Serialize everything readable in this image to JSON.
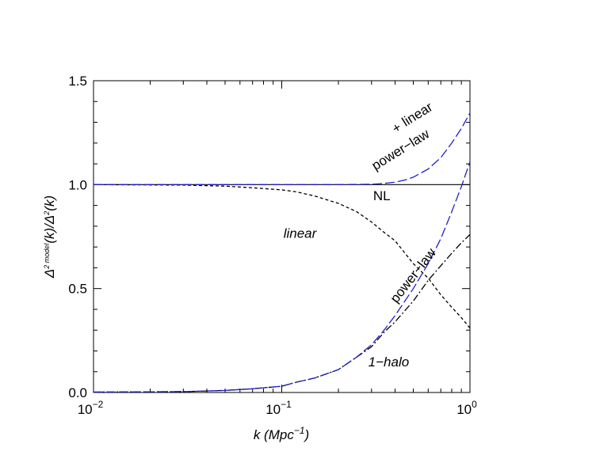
{
  "chart_data": {
    "type": "line",
    "xscale": "log",
    "xlim": [
      0.01,
      1
    ],
    "ylim": [
      0,
      1.5
    ],
    "grid": false,
    "xlabel_main": "k (Mpc",
    "xlabel_exp": "−1",
    "xlabel_close": ")",
    "ylabel_parts": {
      "a": "Δ",
      "b": "2 model",
      "c": "(k)/Δ",
      "d": "2",
      "e": "(k)"
    },
    "xticks": [
      {
        "value": 0.01,
        "base": "10",
        "exp": "−2"
      },
      {
        "value": 0.1,
        "base": "10",
        "exp": "−1"
      },
      {
        "value": 1,
        "base": "10",
        "exp": "0"
      }
    ],
    "yticks": [
      {
        "value": 0.0,
        "label": "0.0"
      },
      {
        "value": 0.5,
        "label": "0.5"
      },
      {
        "value": 1.0,
        "label": "1.0"
      },
      {
        "value": 1.5,
        "label": "1.5"
      }
    ],
    "series": [
      {
        "name": "NL",
        "color": "#000000",
        "style": "solid",
        "x": [
          0.01,
          1
        ],
        "y": [
          1.0,
          1.0
        ]
      },
      {
        "name": "linear",
        "color": "#000000",
        "style": "dashed",
        "x": [
          0.01,
          0.03,
          0.05,
          0.07,
          0.1,
          0.12,
          0.15,
          0.2,
          0.25,
          0.3,
          0.35,
          0.4,
          0.5,
          0.6,
          0.7,
          0.8,
          0.9,
          1.0
        ],
        "y": [
          1.0,
          0.998,
          0.993,
          0.985,
          0.975,
          0.965,
          0.945,
          0.91,
          0.87,
          0.82,
          0.77,
          0.73,
          0.62,
          0.55,
          0.47,
          0.41,
          0.36,
          0.31
        ]
      },
      {
        "name": "1-halo",
        "color": "#000000",
        "style": "dashdot",
        "x": [
          0.01,
          0.03,
          0.05,
          0.07,
          0.1,
          0.12,
          0.15,
          0.2,
          0.25,
          0.3,
          0.35,
          0.4,
          0.5,
          0.6,
          0.7,
          0.8,
          0.9,
          1.0
        ],
        "y": [
          0.002,
          0.004,
          0.01,
          0.018,
          0.03,
          0.05,
          0.07,
          0.11,
          0.17,
          0.22,
          0.29,
          0.34,
          0.44,
          0.54,
          0.61,
          0.67,
          0.72,
          0.76
        ]
      },
      {
        "name": "power-law",
        "color": "#1f1fcc",
        "style": "longdash",
        "x": [
          0.01,
          0.03,
          0.05,
          0.07,
          0.1,
          0.12,
          0.15,
          0.2,
          0.25,
          0.3,
          0.35,
          0.4,
          0.5,
          0.6,
          0.7,
          0.8,
          0.9,
          1.0
        ],
        "y": [
          0.002,
          0.004,
          0.01,
          0.018,
          0.03,
          0.05,
          0.07,
          0.11,
          0.17,
          0.23,
          0.3,
          0.37,
          0.5,
          0.62,
          0.74,
          0.87,
          0.99,
          1.11
        ]
      },
      {
        "name": "linear + power-law",
        "color": "#1f1fcc",
        "style": "longdash",
        "x": [
          0.01,
          0.05,
          0.1,
          0.2,
          0.3,
          0.35,
          0.4,
          0.45,
          0.5,
          0.6,
          0.7,
          0.8,
          0.9,
          1.0
        ],
        "y": [
          1.0,
          1.0,
          1.0,
          1.0,
          1.002,
          1.006,
          1.012,
          1.022,
          1.036,
          1.075,
          1.13,
          1.2,
          1.27,
          1.345
        ]
      }
    ],
    "annotations": [
      {
        "text": "linear",
        "italic": false,
        "rotation": -32,
        "x": 0.54,
        "y": 1.32
      },
      {
        "text": "+",
        "italic": false,
        "rotation": -32,
        "x": 0.42,
        "y": 1.255
      },
      {
        "text": "power−law",
        "italic": false,
        "rotation": -32,
        "x": 0.44,
        "y": 1.15
      },
      {
        "text": "NL",
        "italic": false,
        "rotation": 0,
        "x": 0.34,
        "y": 0.925
      },
      {
        "text": "linear",
        "italic": true,
        "rotation": 0,
        "x": 0.125,
        "y": 0.745
      },
      {
        "text": "power−law",
        "italic": false,
        "rotation": -52,
        "x": 0.52,
        "y": 0.55
      },
      {
        "text": "1−halo",
        "italic": true,
        "rotation": 0,
        "x": 0.37,
        "y": 0.125
      }
    ]
  }
}
